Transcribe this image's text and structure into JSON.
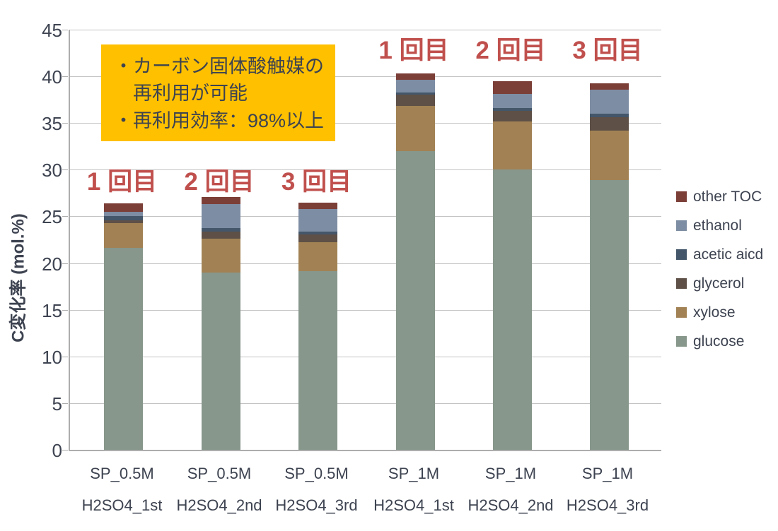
{
  "chart_data": {
    "type": "bar",
    "subtype": "stacked",
    "title": "",
    "ylabel": "C変化率 (mol.%)",
    "xlabel": "",
    "ylim": [
      0,
      45
    ],
    "ytick_step": 5,
    "grid": "horizontal",
    "legend_position": "right",
    "categories": [
      {
        "line1": "SP_0.5M",
        "line2": "H2SO4_1st"
      },
      {
        "line1": "SP_0.5M",
        "line2": "H2SO4_2nd"
      },
      {
        "line1": "SP_0.5M",
        "line2": "H2SO4_3rd"
      },
      {
        "line1": "SP_1M",
        "line2": "H2SO4_1st"
      },
      {
        "line1": "SP_1M",
        "line2": "H2SO4_2nd"
      },
      {
        "line1": "SP_1M",
        "line2": "H2SO4_3rd"
      }
    ],
    "series": [
      {
        "name": "glucose",
        "color": "#87978B",
        "values": [
          21.6,
          19.0,
          19.1,
          32.0,
          30.0,
          28.9
        ]
      },
      {
        "name": "xylose",
        "color": "#A28254",
        "values": [
          2.7,
          3.6,
          3.1,
          4.8,
          5.2,
          5.3
        ]
      },
      {
        "name": "glycerol",
        "color": "#5E5047",
        "values": [
          0.3,
          0.8,
          0.9,
          1.25,
          1.1,
          1.4
        ]
      },
      {
        "name": "acetic aicd",
        "color": "#43566A",
        "values": [
          0.4,
          0.35,
          0.3,
          0.25,
          0.3,
          0.4
        ]
      },
      {
        "name": "ethanol",
        "color": "#7D8DA3",
        "values": [
          0.5,
          2.6,
          2.4,
          1.3,
          1.5,
          2.6
        ]
      },
      {
        "name": "other TOC",
        "color": "#7B3F38",
        "values": [
          0.9,
          0.7,
          0.7,
          0.75,
          1.4,
          0.65
        ]
      }
    ],
    "legend_order_top_to_bottom": [
      "other TOC",
      "ethanol",
      "acetic aicd",
      "glycerol",
      "xylose",
      "glucose"
    ],
    "annotations": [
      {
        "text": "1 回目",
        "bar": 0,
        "row": "low"
      },
      {
        "text": "2 回目",
        "bar": 1,
        "row": "low"
      },
      {
        "text": "3 回目",
        "bar": 2,
        "row": "low"
      },
      {
        "text": "1 回目",
        "bar": 3,
        "row": "high"
      },
      {
        "text": "2 回目",
        "bar": 4,
        "row": "high"
      },
      {
        "text": "3 回目",
        "bar": 5,
        "row": "high"
      }
    ],
    "annotation_color": "#C0504D",
    "note_box": {
      "bg": "#FFC000",
      "lines": [
        "・カーボン固体酸触媒の",
        "　再利用が可能",
        "・再利用効率：98%以上"
      ]
    }
  }
}
